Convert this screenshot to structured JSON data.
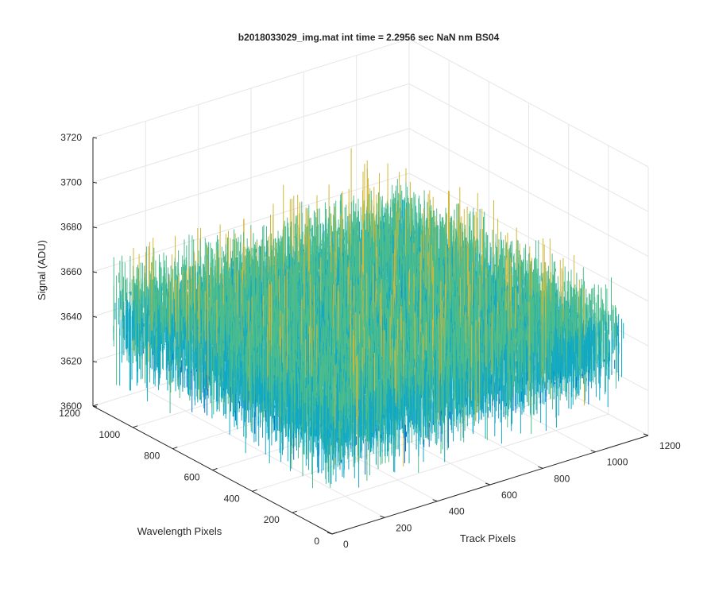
{
  "chart_data": {
    "type": "surface",
    "title": "b2018033029_img.mat int time = 2.2956 sec  NaN nm BS04",
    "xlabel": "Track Pixels",
    "ylabel": "Wavelength Pixels",
    "zlabel": "Signal (ADU)",
    "xlim": [
      0,
      1200
    ],
    "ylim": [
      0,
      1200
    ],
    "zlim": [
      3600,
      3720
    ],
    "x_ticks": [
      "0",
      "200",
      "400",
      "600",
      "800",
      "1000",
      "1200"
    ],
    "y_ticks": [
      "0",
      "200",
      "400",
      "600",
      "800",
      "1000",
      "1200"
    ],
    "z_ticks": [
      "3600",
      "3620",
      "3640",
      "3660",
      "3680",
      "3700",
      "3720"
    ],
    "x_tick_values": [
      0,
      200,
      400,
      600,
      800,
      1000,
      1200
    ],
    "y_tick_values": [
      0,
      200,
      400,
      600,
      800,
      1000,
      1200
    ],
    "z_tick_values": [
      3600,
      3620,
      3640,
      3660,
      3680,
      3700,
      3720
    ],
    "data_extent": {
      "x": [
        0,
        1100
      ],
      "y": [
        0,
        1100
      ]
    },
    "signal_mean": 3644,
    "signal_noise_std": 11,
    "signal_range": [
      3615,
      3700
    ],
    "grid": true,
    "colormap": "parula",
    "colors": {
      "low": "#0b72d2",
      "mid": "#12a9c4",
      "midhigh": "#4cbc8c",
      "high": "#d0b83a",
      "grid": "#e6e6e6",
      "axis": "#262626"
    }
  }
}
